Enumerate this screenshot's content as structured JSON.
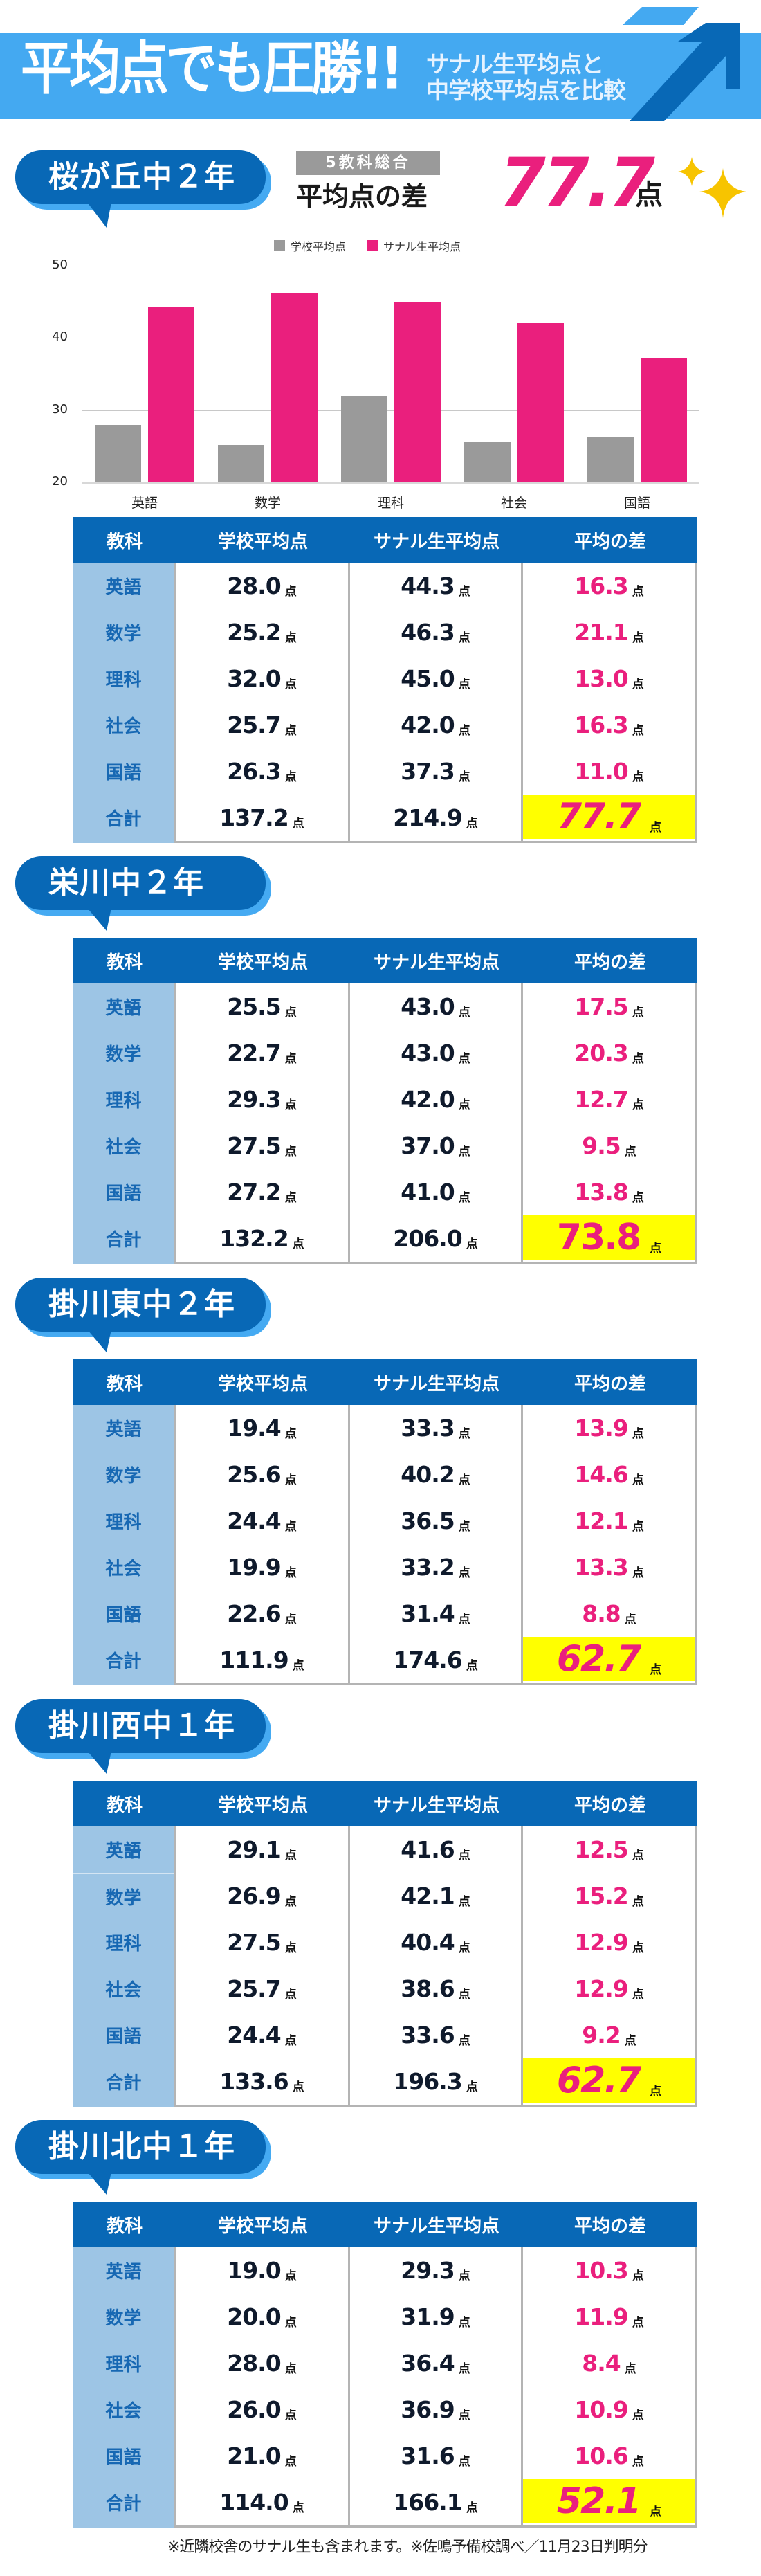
{
  "banner": {
    "title": "平均点でも圧勝!!",
    "subtitle_line1": "サナル生平均点と",
    "subtitle_line2": "中学校平均点を比較",
    "colors": {
      "banner": "#44a9f1",
      "arrow_dark": "#0868b6",
      "arrow_light": "#44a9f1"
    }
  },
  "summary": {
    "tag": "5教科総合",
    "label": "平均点の差",
    "value": "77.7",
    "unit": "点",
    "sparkle_icon": "sparkles-icon"
  },
  "table_headers": [
    "教科",
    "学校平均点",
    "サナル生平均点",
    "平均の差"
  ],
  "unit": "点",
  "colors": {
    "accent_pink": "#ea1f7d",
    "header_blue": "#0868b6",
    "subject_bg": "#9dc5e5",
    "total_highlight": "#ffff00",
    "school_bar": "#9a9a9a",
    "sanaru_bar": "#ea1f7d"
  },
  "chart_data": {
    "type": "bar",
    "title": "",
    "categories": [
      "英語",
      "数学",
      "理科",
      "社会",
      "国語"
    ],
    "series": [
      {
        "name": "学校平均点",
        "color": "#9a9a9a",
        "values": [
          28.0,
          25.2,
          32.0,
          25.7,
          26.3
        ]
      },
      {
        "name": "サナル生平均点",
        "color": "#ea1f7d",
        "values": [
          44.3,
          46.3,
          45.0,
          42.0,
          37.3
        ]
      }
    ],
    "xlabel": "",
    "ylabel": "",
    "ylim": [
      20,
      50
    ],
    "yticks": [
      20,
      30,
      40,
      50
    ],
    "grid": true,
    "legend_position": "top"
  },
  "sections": [
    {
      "school": "桜が丘中２年",
      "rows": [
        {
          "subject": "英語",
          "school_avg": "28.0",
          "sanaru_avg": "44.3",
          "diff": "16.3"
        },
        {
          "subject": "数学",
          "school_avg": "25.2",
          "sanaru_avg": "46.3",
          "diff": "21.1"
        },
        {
          "subject": "理科",
          "school_avg": "32.0",
          "sanaru_avg": "45.0",
          "diff": "13.0"
        },
        {
          "subject": "社会",
          "school_avg": "25.7",
          "sanaru_avg": "42.0",
          "diff": "16.3"
        },
        {
          "subject": "国語",
          "school_avg": "26.3",
          "sanaru_avg": "37.3",
          "diff": "11.0"
        }
      ],
      "total": {
        "subject": "合計",
        "school_avg": "137.2",
        "sanaru_avg": "214.9",
        "diff": "77.7"
      }
    },
    {
      "school": "栄川中２年",
      "rows": [
        {
          "subject": "英語",
          "school_avg": "25.5",
          "sanaru_avg": "43.0",
          "diff": "17.5"
        },
        {
          "subject": "数学",
          "school_avg": "22.7",
          "sanaru_avg": "43.0",
          "diff": "20.3"
        },
        {
          "subject": "理科",
          "school_avg": "29.3",
          "sanaru_avg": "42.0",
          "diff": "12.7"
        },
        {
          "subject": "社会",
          "school_avg": "27.5",
          "sanaru_avg": "37.0",
          "diff": "9.5"
        },
        {
          "subject": "国語",
          "school_avg": "27.2",
          "sanaru_avg": "41.0",
          "diff": "13.8"
        }
      ],
      "total": {
        "subject": "合計",
        "school_avg": "132.2",
        "sanaru_avg": "206.0",
        "diff": "73.8"
      }
    },
    {
      "school": "掛川東中２年",
      "rows": [
        {
          "subject": "英語",
          "school_avg": "19.4",
          "sanaru_avg": "33.3",
          "diff": "13.9"
        },
        {
          "subject": "数学",
          "school_avg": "25.6",
          "sanaru_avg": "40.2",
          "diff": "14.6"
        },
        {
          "subject": "理科",
          "school_avg": "24.4",
          "sanaru_avg": "36.5",
          "diff": "12.1"
        },
        {
          "subject": "社会",
          "school_avg": "19.9",
          "sanaru_avg": "33.2",
          "diff": "13.3"
        },
        {
          "subject": "国語",
          "school_avg": "22.6",
          "sanaru_avg": "31.4",
          "diff": "8.8"
        }
      ],
      "total": {
        "subject": "合計",
        "school_avg": "111.9",
        "sanaru_avg": "174.6",
        "diff": "62.7"
      }
    },
    {
      "school": "掛川西中１年",
      "rows": [
        {
          "subject": "英語",
          "school_avg": "29.1",
          "sanaru_avg": "41.6",
          "diff": "12.5"
        },
        {
          "subject": "数学",
          "school_avg": "26.9",
          "sanaru_avg": "42.1",
          "diff": "15.2"
        },
        {
          "subject": "理科",
          "school_avg": "27.5",
          "sanaru_avg": "40.4",
          "diff": "12.9"
        },
        {
          "subject": "社会",
          "school_avg": "25.7",
          "sanaru_avg": "38.6",
          "diff": "12.9"
        },
        {
          "subject": "国語",
          "school_avg": "24.4",
          "sanaru_avg": "33.6",
          "diff": "9.2"
        }
      ],
      "total": {
        "subject": "合計",
        "school_avg": "133.6",
        "sanaru_avg": "196.3",
        "diff": "62.7"
      }
    },
    {
      "school": "掛川北中１年",
      "rows": [
        {
          "subject": "英語",
          "school_avg": "19.0",
          "sanaru_avg": "29.3",
          "diff": "10.3"
        },
        {
          "subject": "数学",
          "school_avg": "20.0",
          "sanaru_avg": "31.9",
          "diff": "11.9"
        },
        {
          "subject": "理科",
          "school_avg": "28.0",
          "sanaru_avg": "36.4",
          "diff": "8.4"
        },
        {
          "subject": "社会",
          "school_avg": "26.0",
          "sanaru_avg": "36.9",
          "diff": "10.9"
        },
        {
          "subject": "国語",
          "school_avg": "21.0",
          "sanaru_avg": "31.6",
          "diff": "10.6"
        }
      ],
      "total": {
        "subject": "合計",
        "school_avg": "114.0",
        "sanaru_avg": "166.1",
        "diff": "52.1"
      }
    }
  ],
  "footer": "※近隣校舎のサナル生も含まれます。※佐鳴予備校調べ／11月23日判明分"
}
